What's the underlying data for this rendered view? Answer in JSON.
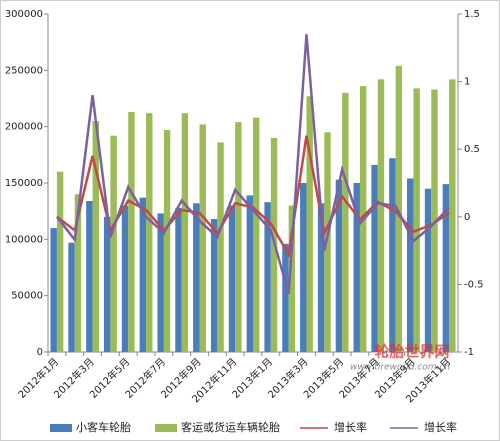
{
  "chart_data": {
    "type": "bar",
    "categories": [
      "2012年1月",
      null,
      "2012年3月",
      null,
      "2012年5月",
      null,
      "2012年7月",
      null,
      "2012年9月",
      null,
      "2012年11月",
      null,
      "2013年1月",
      null,
      "2013年3月",
      null,
      "2013年5月",
      null,
      "2013年7月",
      null,
      "2013年9月",
      null,
      "2013年11月"
    ],
    "series": [
      {
        "name": "小客车轮胎",
        "type": "bar",
        "color": "#4a7ebb",
        "values": [
          110000,
          97000,
          134000,
          120000,
          130000,
          137000,
          123000,
          128000,
          132000,
          118000,
          130000,
          139000,
          133000,
          96000,
          150000,
          132000,
          153000,
          150000,
          166000,
          172000,
          154000,
          145000,
          149000
        ]
      },
      {
        "name": "客运或货运车辆轮胎",
        "type": "bar",
        "color": "#9bbb59",
        "values": [
          160000,
          140000,
          205000,
          192000,
          213000,
          212000,
          197000,
          212000,
          202000,
          186000,
          204000,
          208000,
          190000,
          130000,
          227000,
          195000,
          230000,
          236000,
          242000,
          254000,
          234000,
          233000,
          242000
        ]
      },
      {
        "name": "增长率",
        "type": "line",
        "axis": "y2",
        "color": "#be4b48",
        "values": [
          0,
          -0.1,
          0.45,
          -0.1,
          0.12,
          0.05,
          -0.1,
          0.05,
          0.03,
          -0.12,
          0.1,
          0.07,
          -0.05,
          -0.28,
          0.6,
          -0.12,
          0.15,
          -0.02,
          0.11,
          0.04,
          -0.11,
          -0.06,
          0.03
        ]
      },
      {
        "name": "增长率",
        "type": "line",
        "axis": "y2",
        "color": "#7d60a0",
        "values": [
          0,
          -0.17,
          0.9,
          -0.15,
          0.22,
          0,
          -0.12,
          0.12,
          -0.03,
          -0.15,
          0.2,
          0.05,
          -0.1,
          -0.57,
          1.35,
          -0.25,
          0.35,
          -0.05,
          0.1,
          0.08,
          -0.18,
          -0.07,
          0.07
        ]
      }
    ],
    "ylim": [
      0,
      300000
    ],
    "yticks": [
      0,
      50000,
      100000,
      150000,
      200000,
      250000,
      300000
    ],
    "y2lim": [
      -1,
      1.5
    ],
    "y2ticks": [
      -1,
      -0.5,
      0,
      0.5,
      1,
      1.5
    ],
    "grid": false,
    "legend": "bottom",
    "watermark": [
      "轮胎世界网",
      "www.tireworld.com.cn"
    ]
  }
}
